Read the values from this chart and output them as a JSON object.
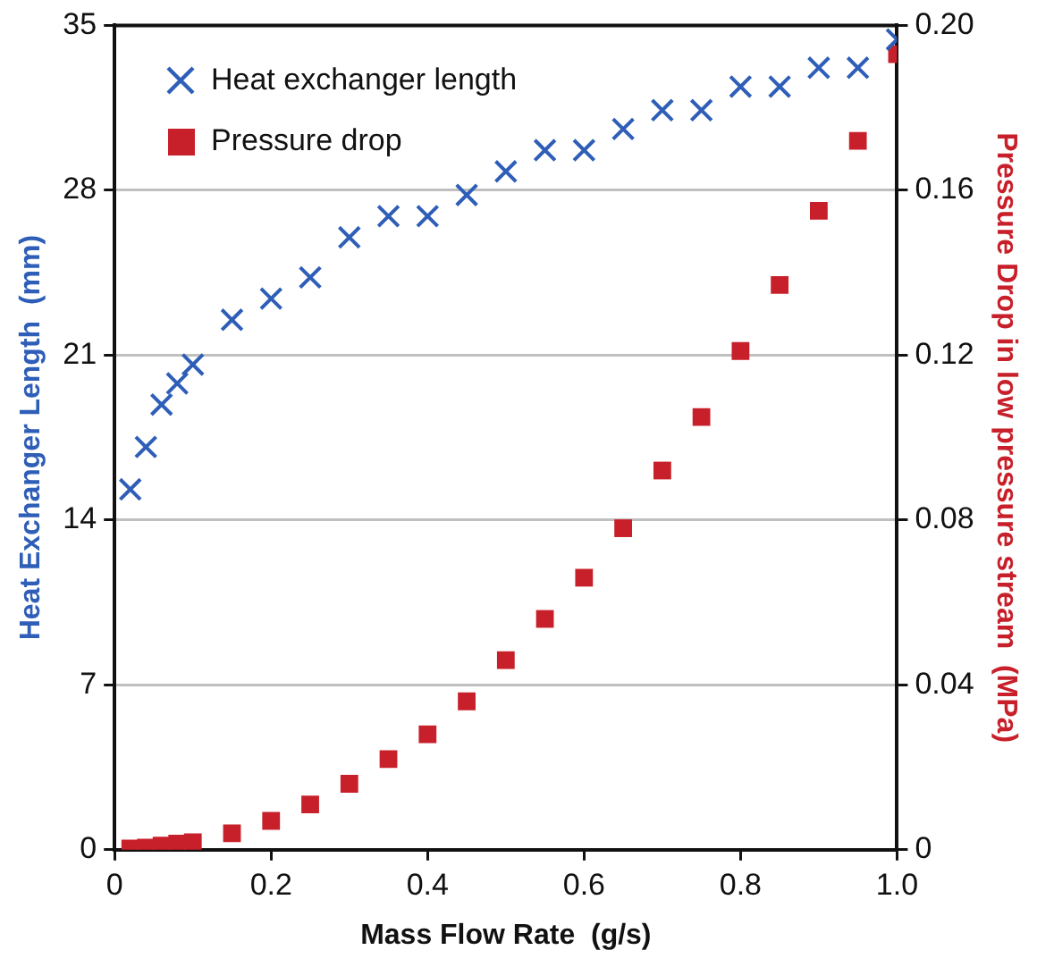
{
  "chart_data": {
    "type": "scatter",
    "xlabel": "Mass Flow Rate  (g/s)",
    "ylabel": "Heat Exchanger Length  (mm)",
    "y2label": "Pressure Drop in low pressure stream  (MPa)",
    "xlim": [
      0,
      1
    ],
    "xticks": [
      0,
      0.2,
      0.4,
      0.6,
      0.8,
      {
        "value": 1,
        "label": "1.0"
      }
    ],
    "ylim": [
      0,
      35
    ],
    "yticks": [
      0,
      7,
      14,
      21,
      28,
      35
    ],
    "y2lim": [
      0,
      0.2
    ],
    "y2ticks": [
      0,
      0.04,
      0.08,
      0.12,
      0.16,
      {
        "value": 0.2,
        "label": "0.20"
      }
    ],
    "grid": "y",
    "legend": "top left",
    "series": [
      {
        "name": "Heat exchanger length",
        "color": "#2e5eb8",
        "marker": "cross",
        "x": [
          0.02,
          0.04,
          0.06,
          0.08,
          0.1,
          0.15,
          0.2,
          0.25,
          0.3,
          0.35,
          0.4,
          0.45,
          0.5,
          0.55,
          0.6,
          0.65,
          0.7,
          0.75,
          0.8,
          0.85,
          0.9,
          0.95,
          1.0
        ],
        "values": [
          15.3,
          17.1,
          18.9,
          19.8,
          20.6,
          22.5,
          23.4,
          24.3,
          26.0,
          26.9,
          26.9,
          27.8,
          28.8,
          29.7,
          29.7,
          30.6,
          31.4,
          31.4,
          32.4,
          32.4,
          33.2,
          33.2,
          34.4
        ]
      },
      {
        "name": "Pressure drop",
        "color": "#c8202a",
        "marker": "square",
        "axis": "y2",
        "x": [
          0.02,
          0.04,
          0.06,
          0.08,
          0.1,
          0.15,
          0.2,
          0.25,
          0.3,
          0.35,
          0.4,
          0.45,
          0.5,
          0.55,
          0.6,
          0.65,
          0.7,
          0.75,
          0.8,
          0.85,
          0.9,
          0.95,
          1.0
        ],
        "values": [
          0.0003,
          0.0005,
          0.001,
          0.0015,
          0.0018,
          0.004,
          0.007,
          0.011,
          0.016,
          0.022,
          0.028,
          0.036,
          0.046,
          0.056,
          0.066,
          0.078,
          0.092,
          0.105,
          0.121,
          0.137,
          0.155,
          0.172,
          0.193
        ]
      }
    ]
  }
}
